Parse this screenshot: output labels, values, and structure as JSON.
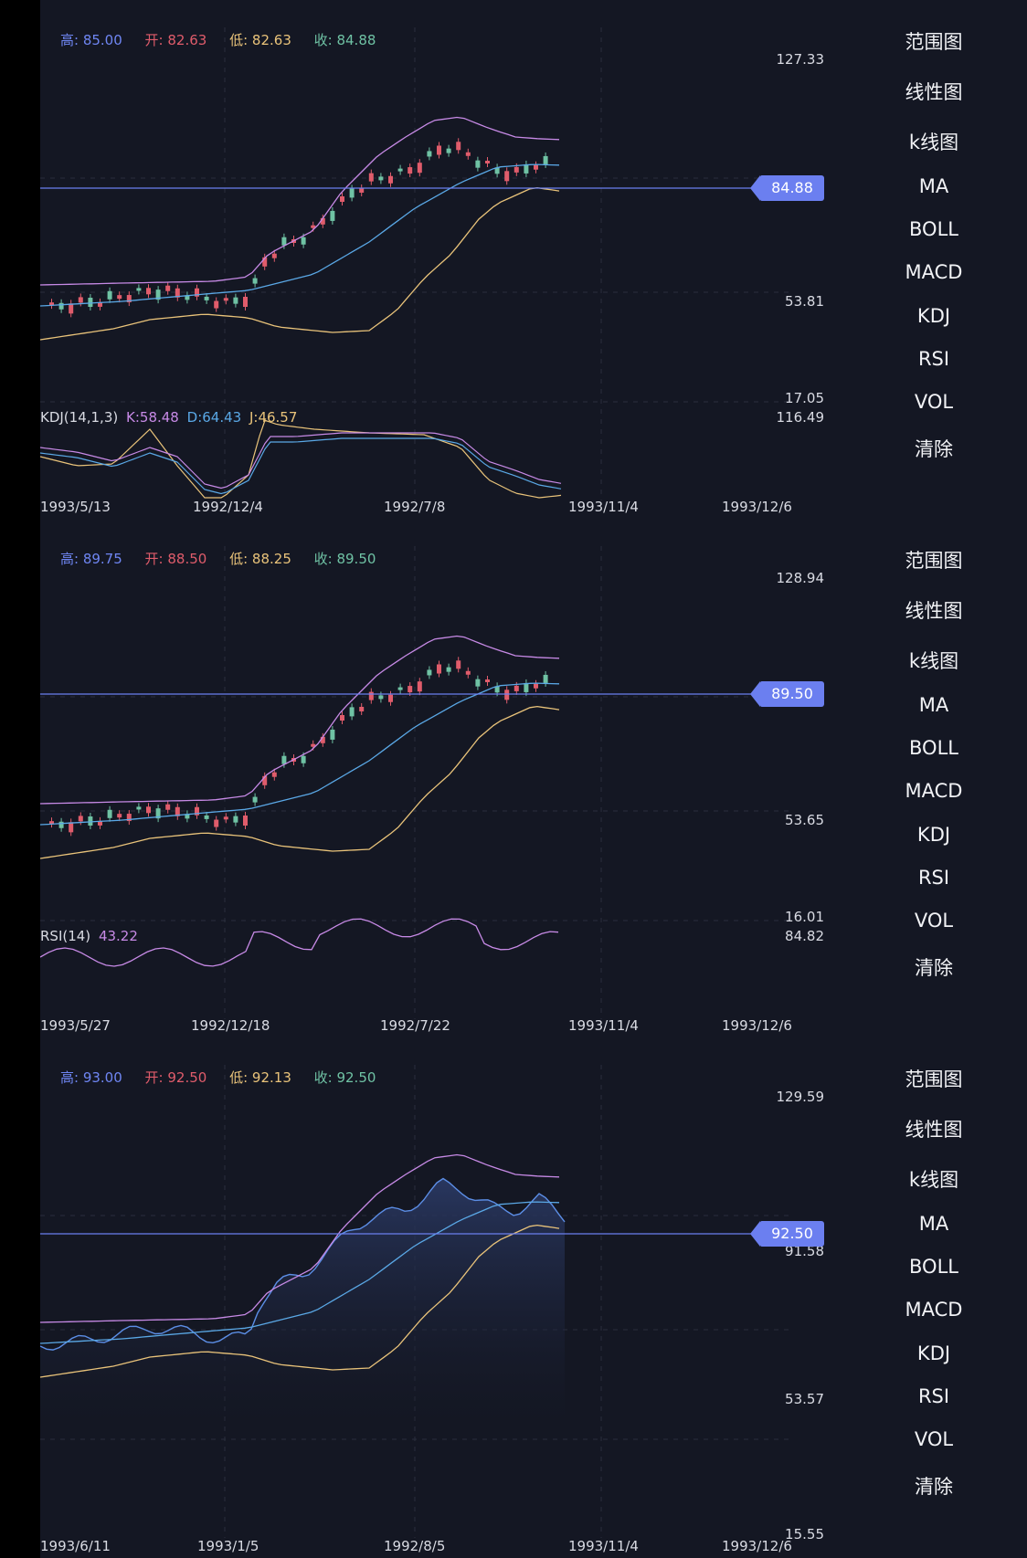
{
  "menu_items": [
    "范围图",
    "线性图",
    "k线图",
    "MA",
    "BOLL",
    "MACD",
    "KDJ",
    "RSI",
    "VOL",
    "清除"
  ],
  "colors": {
    "background": "#141723",
    "boll_upper": "#c78ae6",
    "boll_mid": "#5aa8e6",
    "boll_lower": "#e9c37a",
    "candle_up": "#e05c6b",
    "candle_down": "#6fc2a4",
    "price_line": "#6b7ff0"
  },
  "panels": [
    {
      "mode": "candle",
      "ohlc": {
        "high": "高: 85.00",
        "open": "开: 82.63",
        "low": "低: 82.63",
        "close": "收: 84.88"
      },
      "y_labels": {
        "max": "127.33",
        "mid": "53.81",
        "min": "17.05"
      },
      "last_price": "84.88",
      "indicator": {
        "type": "KDJ",
        "name": "KDJ(14,1,3)",
        "k": "K:58.48",
        "d": "D:64.43",
        "j": "J:46.57",
        "max": "116.49"
      },
      "x_labels": [
        "1993/5/13",
        "1992/12/4",
        "1992/7/8",
        "1993/11/4",
        "1993/12/6"
      ]
    },
    {
      "mode": "candle",
      "ohlc": {
        "high": "高: 89.75",
        "open": "开: 88.50",
        "low": "低: 88.25",
        "close": "收: 89.50"
      },
      "y_labels": {
        "max": "128.94",
        "mid": "53.65",
        "min": "16.01"
      },
      "last_price": "89.50",
      "indicator": {
        "type": "RSI",
        "name": "RSI(14)",
        "value": "43.22",
        "max": "84.82"
      },
      "x_labels": [
        "1993/5/27",
        "1992/12/18",
        "1992/7/22",
        "1993/11/4",
        "1993/12/6"
      ]
    },
    {
      "mode": "line",
      "ohlc": {
        "high": "高: 93.00",
        "open": "开: 92.50",
        "low": "低: 92.13",
        "close": "收: 92.50"
      },
      "y_labels": {
        "max": "129.59",
        "upper": "91.58",
        "mid": "53.57",
        "min": "15.55"
      },
      "last_price": "92.50",
      "x_labels": [
        "1993/6/11",
        "1993/1/5",
        "1992/8/5",
        "1993/11/4",
        "1993/12/6"
      ]
    }
  ]
}
